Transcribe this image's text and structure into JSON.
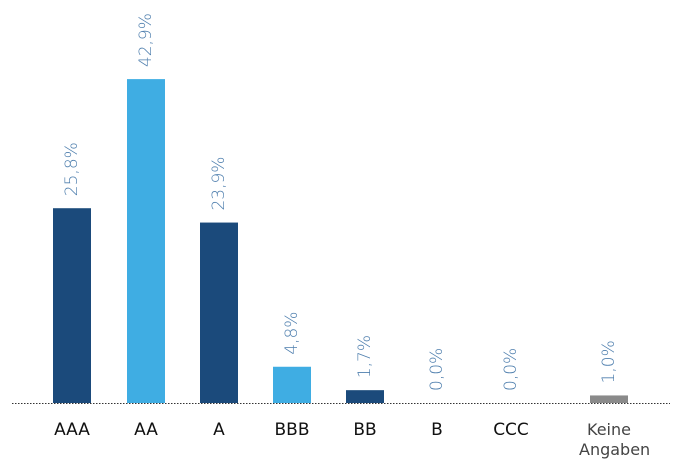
{
  "chart_data": {
    "type": "bar",
    "categories": [
      "AAA",
      "AA",
      "A",
      "BBB",
      "BB",
      "B",
      "CCC",
      "Keine Angaben"
    ],
    "values": [
      25.8,
      42.9,
      23.9,
      4.8,
      1.7,
      0,
      0,
      1.0
    ],
    "value_labels": [
      "25,8%",
      "42,9%",
      "23,9%",
      "4,8%",
      "1,7%",
      "0,0%",
      "0,0%",
      "1,0%"
    ],
    "colors": [
      "#1b4a7b",
      "#3fade3",
      "#1b4a7b",
      "#3fade3",
      "#1b4a7b",
      "#1b4a7b",
      "#1b4a7b",
      "#8a8a8a"
    ]
  }
}
